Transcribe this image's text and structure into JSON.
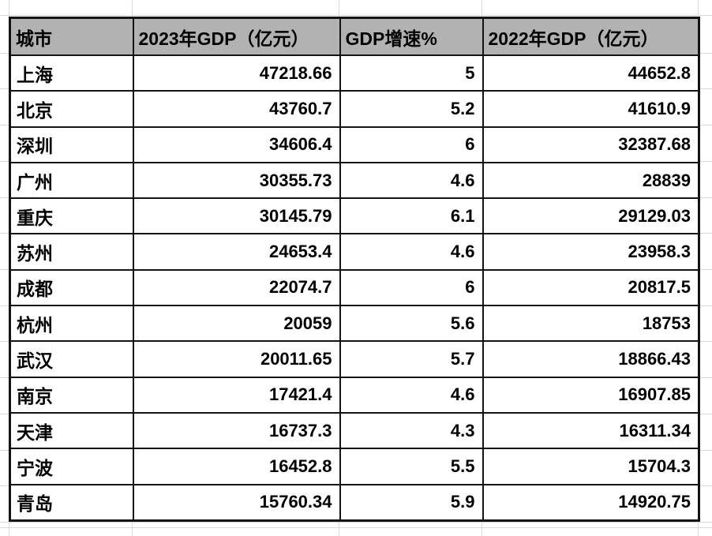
{
  "colors": {
    "background": "#ffffff",
    "header_bg": "#b3b2b2",
    "table_border": "#141414",
    "gridline": "#d9d9d9",
    "text": "#000000"
  },
  "table": {
    "columns": [
      {
        "id": "city",
        "label": "城市"
      },
      {
        "id": "gdp2023",
        "label": "2023年GDP（亿元）"
      },
      {
        "id": "growth",
        "label": "GDP增速%"
      },
      {
        "id": "gdp2022",
        "label": "2022年GDP（亿元）"
      }
    ],
    "rows": [
      {
        "city": "上海",
        "gdp2023": "47218.66",
        "growth": "5",
        "gdp2022": "44652.8"
      },
      {
        "city": "北京",
        "gdp2023": "43760.7",
        "growth": "5.2",
        "gdp2022": "41610.9"
      },
      {
        "city": "深圳",
        "gdp2023": "34606.4",
        "growth": "6",
        "gdp2022": "32387.68"
      },
      {
        "city": "广州",
        "gdp2023": "30355.73",
        "growth": "4.6",
        "gdp2022": "28839"
      },
      {
        "city": "重庆",
        "gdp2023": "30145.79",
        "growth": "6.1",
        "gdp2022": "29129.03"
      },
      {
        "city": "苏州",
        "gdp2023": "24653.4",
        "growth": "4.6",
        "gdp2022": "23958.3"
      },
      {
        "city": "成都",
        "gdp2023": "22074.7",
        "growth": "6",
        "gdp2022": "20817.5"
      },
      {
        "city": "杭州",
        "gdp2023": "20059",
        "growth": "5.6",
        "gdp2022": "18753"
      },
      {
        "city": "武汉",
        "gdp2023": "20011.65",
        "growth": "5.7",
        "gdp2022": "18866.43"
      },
      {
        "city": "南京",
        "gdp2023": "17421.4",
        "growth": "4.6",
        "gdp2022": "16907.85"
      },
      {
        "city": "天津",
        "gdp2023": "16737.3",
        "growth": "4.3",
        "gdp2022": "16311.34"
      },
      {
        "city": "宁波",
        "gdp2023": "16452.8",
        "growth": "5.5",
        "gdp2022": "15704.3"
      },
      {
        "city": "青岛",
        "gdp2023": "15760.34",
        "growth": "5.9",
        "gdp2022": "14920.75"
      }
    ]
  },
  "chart_data": {
    "type": "table",
    "columns": [
      "城市",
      "2023年GDP（亿元）",
      "GDP增速%",
      "2022年GDP（亿元）"
    ],
    "rows": [
      [
        "上海",
        47218.66,
        5,
        44652.8
      ],
      [
        "北京",
        43760.7,
        5.2,
        41610.9
      ],
      [
        "深圳",
        34606.4,
        6,
        32387.68
      ],
      [
        "广州",
        30355.73,
        4.6,
        28839
      ],
      [
        "重庆",
        30145.79,
        6.1,
        29129.03
      ],
      [
        "苏州",
        24653.4,
        4.6,
        23958.3
      ],
      [
        "成都",
        22074.7,
        6,
        20817.5
      ],
      [
        "杭州",
        20059,
        5.6,
        18753
      ],
      [
        "武汉",
        20011.65,
        5.7,
        18866.43
      ],
      [
        "南京",
        17421.4,
        4.6,
        16907.85
      ],
      [
        "天津",
        16737.3,
        4.3,
        16311.34
      ],
      [
        "宁波",
        16452.8,
        5.5,
        15704.3
      ],
      [
        "青岛",
        15760.34,
        5.9,
        14920.75
      ]
    ]
  }
}
